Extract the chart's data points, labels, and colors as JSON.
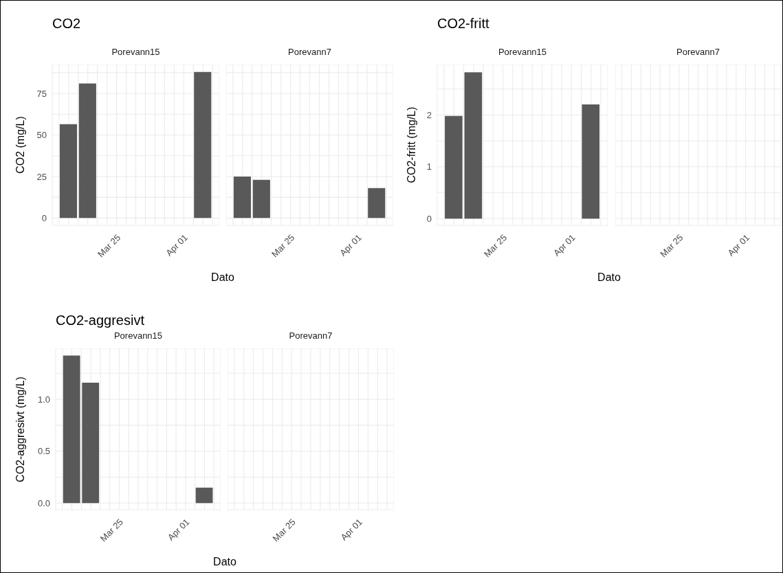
{
  "chart_data": [
    {
      "type": "bar",
      "title": "CO2",
      "subtitle": "Porevann15",
      "xlabel": "Dato",
      "ylabel": "CO2 (mg/L)",
      "x": [
        "--03-20",
        "--03-22",
        "--04-03"
      ],
      "values": [
        56.5,
        81,
        88
      ],
      "color": "#595959",
      "xlim": [
        "--03-18T07:00",
        "--04-04T17:00"
      ],
      "xticks": [
        {
          "value": "--03-19",
          "label": null
        },
        {
          "value": "--03-20",
          "label": null
        },
        {
          "value": "--03-21",
          "label": null
        },
        {
          "value": "--03-22",
          "label": null
        },
        {
          "value": "--03-23",
          "label": null
        },
        {
          "value": "--03-24",
          "label": null
        },
        {
          "value": "--03-25",
          "label": "Mar 25"
        },
        {
          "value": "--03-26",
          "label": null
        },
        {
          "value": "--03-27",
          "label": null
        },
        {
          "value": "--03-28",
          "label": null
        },
        {
          "value": "--03-29",
          "label": null
        },
        {
          "value": "--03-30",
          "label": null
        },
        {
          "value": "--03-31",
          "label": null
        },
        {
          "value": "--04-01",
          "label": "Apr 01"
        },
        {
          "value": "--04-02",
          "label": null
        },
        {
          "value": "--04-03",
          "label": null
        },
        {
          "value": "--04-04",
          "label": null
        }
      ],
      "ylim": [
        -4.4,
        92.4
      ],
      "yticks": [
        0,
        {
          "value": 12.5,
          "label": null
        },
        25,
        {
          "value": 37.5,
          "label": null
        },
        50,
        {
          "value": 62.5,
          "label": null
        },
        75,
        {
          "value": 87.5,
          "label": null
        }
      ],
      "grid": true
    },
    {
      "type": "bar",
      "subtitle": "Porevann7",
      "x": [
        "--03-20",
        "--03-22",
        "--04-03"
      ],
      "values": [
        25,
        23,
        18
      ],
      "color": "#595959",
      "xlim": [
        "--03-18T07:00",
        "--04-04T17:00"
      ],
      "xticks": [
        {
          "value": "--03-19",
          "label": null
        },
        {
          "value": "--03-20",
          "label": null
        },
        {
          "value": "--03-21",
          "label": null
        },
        {
          "value": "--03-22",
          "label": null
        },
        {
          "value": "--03-23",
          "label": null
        },
        {
          "value": "--03-24",
          "label": null
        },
        {
          "value": "--03-25",
          "label": "Mar 25"
        },
        {
          "value": "--03-26",
          "label": null
        },
        {
          "value": "--03-27",
          "label": null
        },
        {
          "value": "--03-28",
          "label": null
        },
        {
          "value": "--03-29",
          "label": null
        },
        {
          "value": "--03-30",
          "label": null
        },
        {
          "value": "--03-31",
          "label": null
        },
        {
          "value": "--04-01",
          "label": "Apr 01"
        },
        {
          "value": "--04-02",
          "label": null
        },
        {
          "value": "--04-03",
          "label": null
        },
        {
          "value": "--04-04",
          "label": null
        }
      ],
      "ylim": [
        -4.4,
        92.4
      ],
      "yticks": [
        0,
        {
          "value": 12.5,
          "label": null
        },
        25,
        {
          "value": 37.5,
          "label": null
        },
        50,
        {
          "value": 62.5,
          "label": null
        },
        75,
        {
          "value": 87.5,
          "label": null
        }
      ],
      "grid": true,
      "tick_labels": "x"
    },
    {
      "type": "bar",
      "title": "CO2-fritt",
      "subtitle": "Porevann15",
      "xlabel": "Dato",
      "ylabel": "CO2-fritt (mg/L)",
      "x": [
        "--03-20",
        "--03-22",
        "--04-03"
      ],
      "values": [
        1.98,
        2.82,
        2.2
      ],
      "color": "#595959",
      "xlim": [
        "--03-18T07:00",
        "--04-04T17:00"
      ],
      "xticks": [
        {
          "value": "--03-19",
          "label": null
        },
        {
          "value": "--03-20",
          "label": null
        },
        {
          "value": "--03-21",
          "label": null
        },
        {
          "value": "--03-22",
          "label": null
        },
        {
          "value": "--03-23",
          "label": null
        },
        {
          "value": "--03-24",
          "label": null
        },
        {
          "value": "--03-25",
          "label": "Mar 25"
        },
        {
          "value": "--03-26",
          "label": null
        },
        {
          "value": "--03-27",
          "label": null
        },
        {
          "value": "--03-28",
          "label": null
        },
        {
          "value": "--03-29",
          "label": null
        },
        {
          "value": "--03-30",
          "label": null
        },
        {
          "value": "--03-31",
          "label": null
        },
        {
          "value": "--04-01",
          "label": "Apr 01"
        },
        {
          "value": "--04-02",
          "label": null
        },
        {
          "value": "--04-03",
          "label": null
        },
        {
          "value": "--04-04",
          "label": null
        }
      ],
      "ylim": [
        -0.13,
        2.97
      ],
      "yticks": [
        0,
        {
          "value": 0.5,
          "label": null
        },
        1,
        {
          "value": 1.5,
          "label": null
        },
        2,
        {
          "value": 2.5,
          "label": null
        }
      ],
      "grid": true
    },
    {
      "type": "bar",
      "subtitle": "Porevann7",
      "xlim": [
        "--03-18T07:00",
        "--04-04T17:00"
      ],
      "xticks": [
        {
          "value": "--03-19",
          "label": null
        },
        {
          "value": "--03-20",
          "label": null
        },
        {
          "value": "--03-21",
          "label": null
        },
        {
          "value": "--03-22",
          "label": null
        },
        {
          "value": "--03-23",
          "label": null
        },
        {
          "value": "--03-24",
          "label": null
        },
        {
          "value": "--03-25",
          "label": "Mar 25"
        },
        {
          "value": "--03-26",
          "label": null
        },
        {
          "value": "--03-27",
          "label": null
        },
        {
          "value": "--03-28",
          "label": null
        },
        {
          "value": "--03-29",
          "label": null
        },
        {
          "value": "--03-30",
          "label": null
        },
        {
          "value": "--03-31",
          "label": null
        },
        {
          "value": "--04-01",
          "label": "Apr 01"
        },
        {
          "value": "--04-02",
          "label": null
        },
        {
          "value": "--04-03",
          "label": null
        },
        {
          "value": "--04-04",
          "label": null
        }
      ],
      "ylim": [
        -0.13,
        2.97
      ],
      "yticks": [
        0,
        {
          "value": 0.5,
          "label": null
        },
        1,
        {
          "value": 1.5,
          "label": null
        },
        2,
        {
          "value": 2.5,
          "label": null
        }
      ],
      "grid": true,
      "tick_labels": "x"
    },
    {
      "type": "bar",
      "title": "CO2-aggresivt",
      "subtitle": "Porevann15",
      "xlabel": "Dato",
      "ylabel": "CO2-aggresivt (mg/L)",
      "x": [
        "--03-20",
        "--03-22",
        "--04-03"
      ],
      "values": [
        1.42,
        1.16,
        0.15
      ],
      "color": "#595959",
      "xlim": [
        "--03-18T07:00",
        "--04-04T17:00"
      ],
      "xticks": [
        {
          "value": "--03-19",
          "label": null
        },
        {
          "value": "--03-20",
          "label": null
        },
        {
          "value": "--03-21",
          "label": null
        },
        {
          "value": "--03-22",
          "label": null
        },
        {
          "value": "--03-23",
          "label": null
        },
        {
          "value": "--03-24",
          "label": null
        },
        {
          "value": "--03-25",
          "label": "Mar 25"
        },
        {
          "value": "--03-26",
          "label": null
        },
        {
          "value": "--03-27",
          "label": null
        },
        {
          "value": "--03-28",
          "label": null
        },
        {
          "value": "--03-29",
          "label": null
        },
        {
          "value": "--03-30",
          "label": null
        },
        {
          "value": "--03-31",
          "label": null
        },
        {
          "value": "--04-01",
          "label": "Apr 01"
        },
        {
          "value": "--04-02",
          "label": null
        },
        {
          "value": "--04-03",
          "label": null
        },
        {
          "value": "--04-04",
          "label": null
        }
      ],
      "ylim": [
        -0.064,
        1.49
      ],
      "yticks": [
        {
          "value": 0,
          "label": "0.0"
        },
        {
          "value": 0.25,
          "label": null
        },
        {
          "value": 0.5,
          "label": "0.5"
        },
        {
          "value": 0.75,
          "label": null
        },
        {
          "value": 1,
          "label": "1.0"
        },
        {
          "value": 1.25,
          "label": null
        }
      ],
      "grid": true
    },
    {
      "type": "bar",
      "subtitle": "Porevann7",
      "xlim": [
        "--03-18T07:00",
        "--04-04T17:00"
      ],
      "xticks": [
        {
          "value": "--03-19",
          "label": null
        },
        {
          "value": "--03-20",
          "label": null
        },
        {
          "value": "--03-21",
          "label": null
        },
        {
          "value": "--03-22",
          "label": null
        },
        {
          "value": "--03-23",
          "label": null
        },
        {
          "value": "--03-24",
          "label": null
        },
        {
          "value": "--03-25",
          "label": "Mar 25"
        },
        {
          "value": "--03-26",
          "label": null
        },
        {
          "value": "--03-27",
          "label": null
        },
        {
          "value": "--03-28",
          "label": null
        },
        {
          "value": "--03-29",
          "label": null
        },
        {
          "value": "--03-30",
          "label": null
        },
        {
          "value": "--03-31",
          "label": null
        },
        {
          "value": "--04-01",
          "label": "Apr 01"
        },
        {
          "value": "--04-02",
          "label": null
        },
        {
          "value": "--04-03",
          "label": null
        },
        {
          "value": "--04-04",
          "label": null
        }
      ],
      "ylim": [
        -0.064,
        1.49
      ],
      "yticks": [
        0,
        {
          "value": 0.25,
          "label": null
        },
        0.5,
        {
          "value": 0.75,
          "label": null
        },
        1,
        {
          "value": 1.25,
          "label": null
        }
      ],
      "grid": true,
      "tick_labels": "x"
    }
  ]
}
